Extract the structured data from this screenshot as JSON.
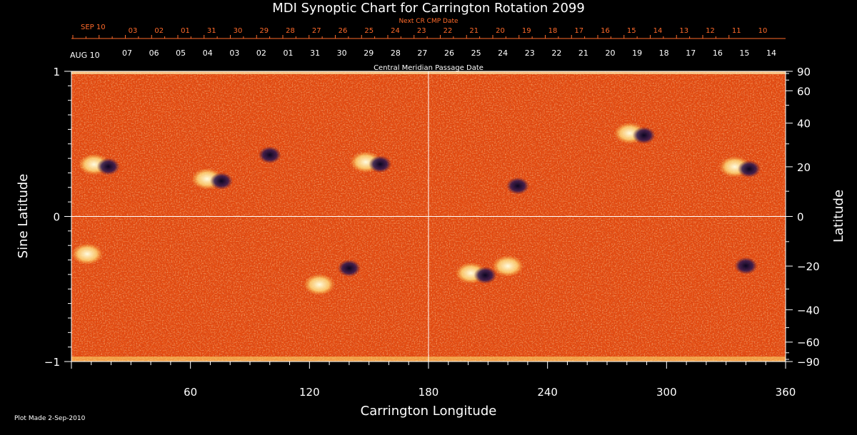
{
  "chart_data": {
    "type": "heatmap",
    "title": "MDI Synoptic Chart for Carrington Rotation 2099",
    "xlabel": "Carrington Longitude",
    "ylabel_left": "Sine Latitude",
    "ylabel_right": "Latitude",
    "xlim": [
      0,
      360
    ],
    "ylim": [
      -1,
      1
    ],
    "x_ticks": [
      60,
      120,
      180,
      240,
      300,
      360
    ],
    "y_ticks_left": [
      1,
      0,
      -1
    ],
    "y_tick_labels_left": [
      "1",
      "0",
      "−1"
    ],
    "y_ticks_right": [
      90,
      60,
      40,
      20,
      0,
      -20,
      -40,
      -60,
      -90
    ],
    "y_tick_labels_right": [
      "90",
      "60",
      "40",
      "20",
      "0",
      "−20",
      "−40",
      "−60",
      "−90"
    ],
    "top_axis_caption": "Central Meridian Passage Date",
    "top_axis_start_label": "AUG 10",
    "top_axis_dates": [
      "07",
      "06",
      "05",
      "04",
      "03",
      "02",
      "01",
      "31",
      "30",
      "29",
      "28",
      "27",
      "26",
      "25",
      "24",
      "23",
      "22",
      "21",
      "20",
      "19",
      "18",
      "17",
      "16",
      "15",
      "14"
    ],
    "next_cr_caption": "Next CR CMP Date",
    "next_cr_start_label": "SEP 10",
    "next_cr_dates": [
      "03",
      "02",
      "01",
      "31",
      "30",
      "29",
      "28",
      "27",
      "26",
      "25",
      "24",
      "23",
      "22",
      "21",
      "20",
      "19",
      "18",
      "17",
      "16",
      "15",
      "14",
      "13",
      "12",
      "11",
      "10"
    ],
    "regions": [
      {
        "lon": 15,
        "lat": 21,
        "polarity": "bipolar"
      },
      {
        "lon": 72,
        "lat": 15,
        "polarity": "bipolar"
      },
      {
        "lon": 100,
        "lat": 26,
        "polarity": "negative"
      },
      {
        "lon": 152,
        "lat": 22,
        "polarity": "bipolar"
      },
      {
        "lon": 225,
        "lat": 13,
        "polarity": "negative"
      },
      {
        "lon": 285,
        "lat": 35,
        "polarity": "bipolar"
      },
      {
        "lon": 338,
        "lat": 20,
        "polarity": "bipolar"
      },
      {
        "lon": 8,
        "lat": -15,
        "polarity": "positive"
      },
      {
        "lon": 140,
        "lat": -20,
        "polarity": "negative"
      },
      {
        "lon": 125,
        "lat": -28,
        "polarity": "positive"
      },
      {
        "lon": 205,
        "lat": -23,
        "polarity": "bipolar"
      },
      {
        "lon": 220,
        "lat": -20,
        "polarity": "positive"
      },
      {
        "lon": 340,
        "lat": -19,
        "polarity": "negative"
      }
    ],
    "colors": {
      "background": "#e84a10",
      "positive": "#fff4c0",
      "negative": "#1a1040",
      "grid": "#ffffff"
    },
    "grid": true
  },
  "footer": {
    "plot_made": "Plot Made  2-Sep-2010"
  }
}
